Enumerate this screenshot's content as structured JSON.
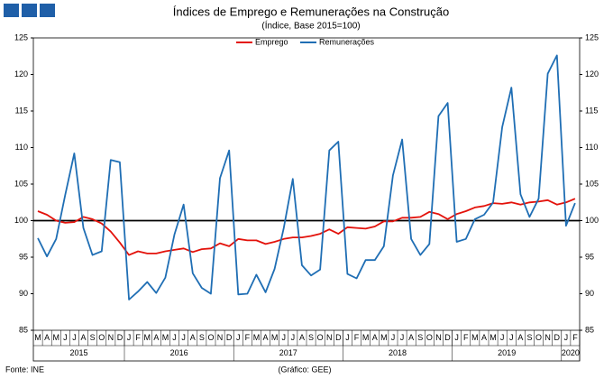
{
  "chart_data": {
    "type": "line",
    "title": "Índices de Emprego e Remunerações na Construção",
    "subtitle": "(Índice, Base 2015=100)",
    "source": "Fonte: INE",
    "credit": "(Gráfico: GEE)",
    "groups": [
      {
        "year": "2015",
        "months": [
          "M",
          "A",
          "M",
          "J",
          "J",
          "A",
          "S",
          "O",
          "N",
          "D"
        ]
      },
      {
        "year": "2016",
        "months": [
          "J",
          "F",
          "M",
          "A",
          "M",
          "J",
          "J",
          "A",
          "S",
          "O",
          "N",
          "D"
        ]
      },
      {
        "year": "2017",
        "months": [
          "J",
          "F",
          "M",
          "A",
          "M",
          "J",
          "J",
          "A",
          "S",
          "O",
          "N",
          "D"
        ]
      },
      {
        "year": "2018",
        "months": [
          "J",
          "F",
          "M",
          "A",
          "M",
          "J",
          "J",
          "A",
          "S",
          "O",
          "N",
          "D"
        ]
      },
      {
        "year": "2019",
        "months": [
          "J",
          "F",
          "M",
          "A",
          "M",
          "J",
          "J",
          "A",
          "S",
          "O",
          "N",
          "D"
        ]
      },
      {
        "year": "2020",
        "months": [
          "J",
          "F"
        ]
      }
    ],
    "series": [
      {
        "name": "Emprego",
        "color": "#e3120b",
        "values": [
          101.3,
          100.8,
          100.0,
          99.7,
          99.8,
          100.5,
          100.2,
          99.6,
          98.5,
          97.0,
          95.3,
          95.8,
          95.5,
          95.5,
          95.8,
          96.0,
          96.2,
          95.7,
          96.1,
          96.2,
          96.9,
          96.5,
          97.5,
          97.3,
          97.3,
          96.8,
          97.1,
          97.5,
          97.7,
          97.7,
          97.9,
          98.2,
          98.8,
          98.2,
          99.1,
          99.0,
          98.9,
          99.2,
          99.9,
          99.9,
          100.4,
          100.4,
          100.5,
          101.2,
          100.9,
          100.2,
          100.9,
          101.3,
          101.8,
          102.0,
          102.4,
          102.3,
          102.5,
          102.2,
          102.5,
          102.6,
          102.8,
          102.2,
          102.5,
          103.0
        ]
      },
      {
        "name": "Remunerações",
        "color": "#1f6eb4",
        "values": [
          97.6,
          95.1,
          97.5,
          103.5,
          109.2,
          99.0,
          95.3,
          95.8,
          108.3,
          108.0,
          89.2,
          90.3,
          91.6,
          90.1,
          92.2,
          98.1,
          102.2,
          92.8,
          90.8,
          90.0,
          105.8,
          109.6,
          89.9,
          90.0,
          92.6,
          90.2,
          93.4,
          99.0,
          105.7,
          93.9,
          92.5,
          93.3,
          109.6,
          110.8,
          92.7,
          92.1,
          94.6,
          94.6,
          96.5,
          106.2,
          111.1,
          97.5,
          95.3,
          96.8,
          114.3,
          116.1,
          97.1,
          97.5,
          100.2,
          100.8,
          102.5,
          112.8,
          118.2,
          103.6,
          100.5,
          103.0,
          120.1,
          122.6,
          99.3,
          102.4
        ]
      }
    ],
    "reference_line": 100,
    "ylim": [
      85,
      125
    ],
    "yticks": [
      85,
      90,
      95,
      100,
      105,
      110,
      115,
      120,
      125
    ],
    "y2lim": [
      85,
      125
    ],
    "y2ticks": [
      85,
      90,
      95,
      100,
      105,
      110,
      115,
      120,
      125
    ],
    "legend": "top"
  }
}
